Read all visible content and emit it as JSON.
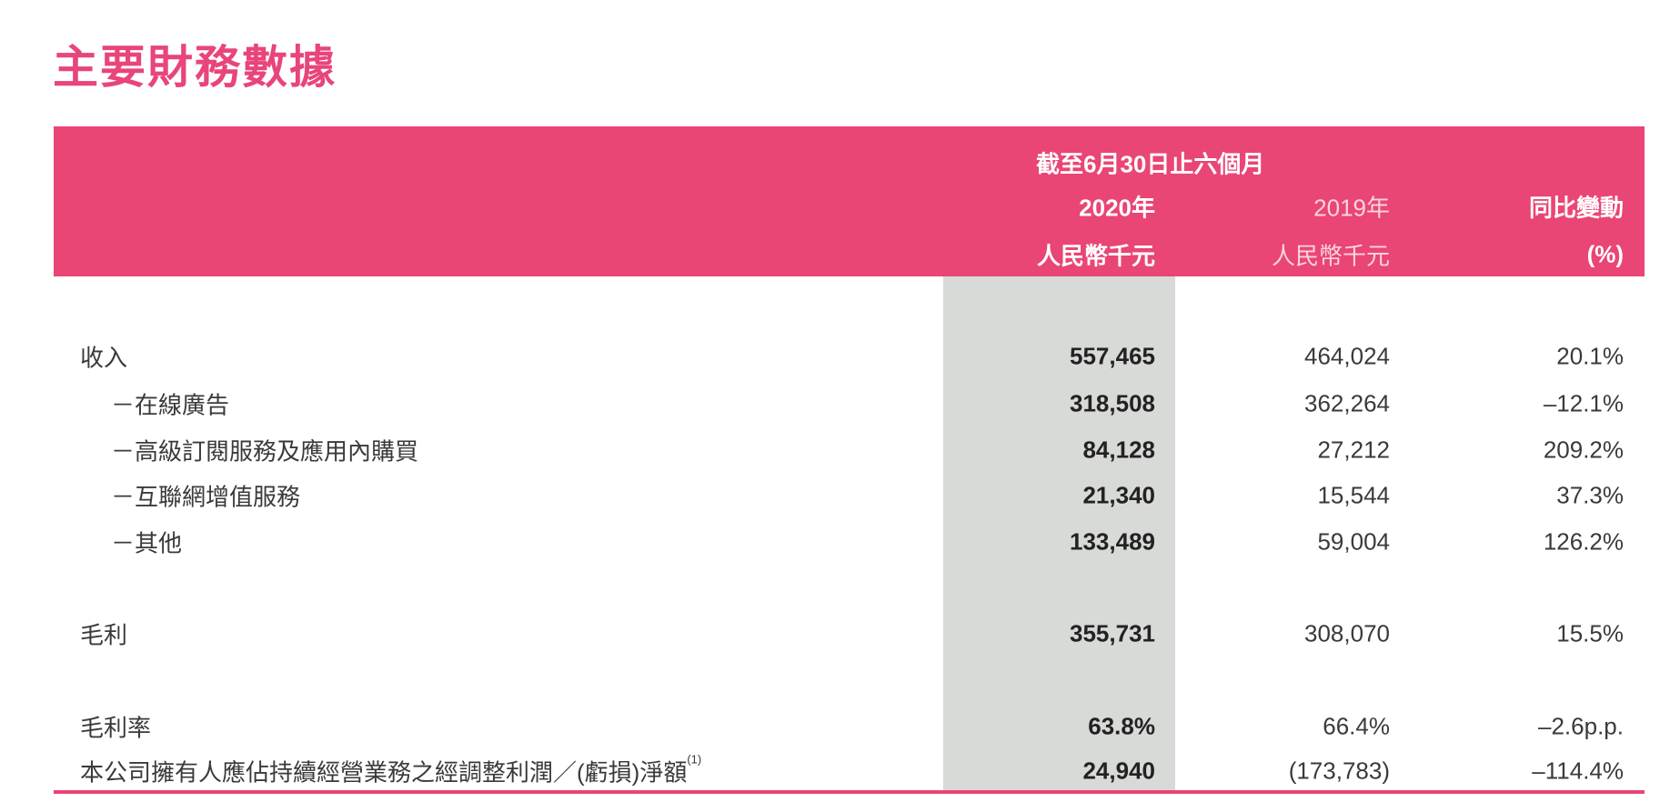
{
  "title": "主要財務數據",
  "header": {
    "period": "截至6月30日止六個月",
    "col_2020": "2020年",
    "col_2019": "2019年",
    "col_change": "同比變動",
    "unit_2020": "人民幣千元",
    "unit_2019": "人民幣千元",
    "unit_change": "(%)"
  },
  "colors": {
    "accent": "#e94575",
    "highlight_column": "#d8dad7"
  },
  "rows": [
    {
      "label": "收入",
      "v2020": "557,465",
      "v2019": "464,024",
      "change": "20.1%"
    },
    {
      "label": "－在線廣告",
      "v2020": "318,508",
      "v2019": "362,264",
      "change": "–12.1%"
    },
    {
      "label": "－高級訂閱服務及應用內購買",
      "v2020": "84,128",
      "v2019": "27,212",
      "change": "209.2%"
    },
    {
      "label": "－互聯網增值服務",
      "v2020": "21,340",
      "v2019": "15,544",
      "change": "37.3%"
    },
    {
      "label": "－其他",
      "v2020": "133,489",
      "v2019": "59,004",
      "change": "126.2%"
    },
    {
      "label": "毛利",
      "v2020": "355,731",
      "v2019": "308,070",
      "change": "15.5%"
    },
    {
      "label": "毛利率",
      "v2020": "63.8%",
      "v2019": "66.4%",
      "change": "–2.6p.p."
    },
    {
      "label": "本公司擁有人應佔持續經營業務之經調整利潤／(虧損)淨額",
      "note": "(1)",
      "v2020": "24,940",
      "v2019": "(173,783)",
      "change": "–114.4%"
    }
  ]
}
